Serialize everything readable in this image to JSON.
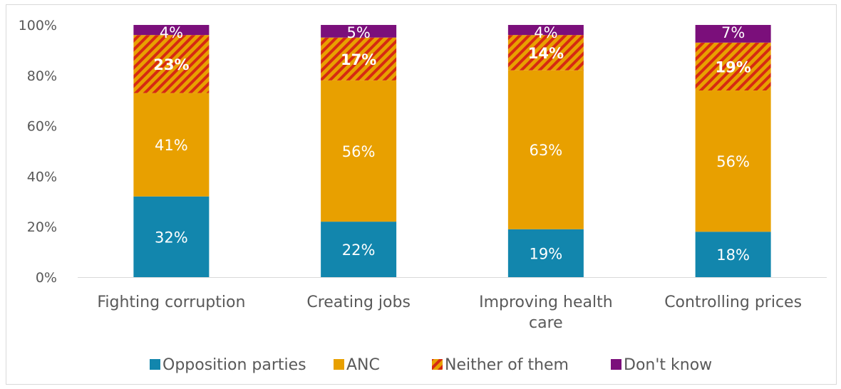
{
  "chart_data": {
    "type": "bar",
    "stacked": true,
    "categories": [
      "Fighting corruption",
      "Creating jobs",
      "Improving health care",
      "Controlling prices"
    ],
    "category_lines": [
      [
        "Fighting corruption"
      ],
      [
        "Creating jobs"
      ],
      [
        "Improving health",
        "care"
      ],
      [
        "Controlling prices"
      ]
    ],
    "series": [
      {
        "name": "Opposition parties",
        "values": [
          32,
          22,
          19,
          18
        ],
        "labels": [
          "32%",
          "22%",
          "19%",
          "18%"
        ],
        "color": "#1286ad",
        "pattern": false
      },
      {
        "name": "ANC",
        "values": [
          41,
          56,
          63,
          56
        ],
        "labels": [
          "41%",
          "56%",
          "63%",
          "56%"
        ],
        "color": "#e8a000",
        "pattern": false
      },
      {
        "name": "Neither of them",
        "values": [
          23,
          17,
          14,
          19
        ],
        "labels": [
          "23%",
          "17%",
          "14%",
          "19%"
        ],
        "color": "#e8a000",
        "pattern": true,
        "stripe_color": "#d62a12"
      },
      {
        "name": "Don't know",
        "values": [
          4,
          5,
          4,
          7
        ],
        "labels": [
          "4%",
          "5%",
          "4%",
          "7%"
        ],
        "color": "#7b0f7b",
        "pattern": false
      }
    ],
    "ylim": [
      0,
      100
    ],
    "yticks": [
      "0%",
      "20%",
      "40%",
      "60%",
      "80%",
      "100%"
    ],
    "xlabel": "",
    "ylabel": "",
    "grid": false,
    "legend_position": "bottom"
  }
}
